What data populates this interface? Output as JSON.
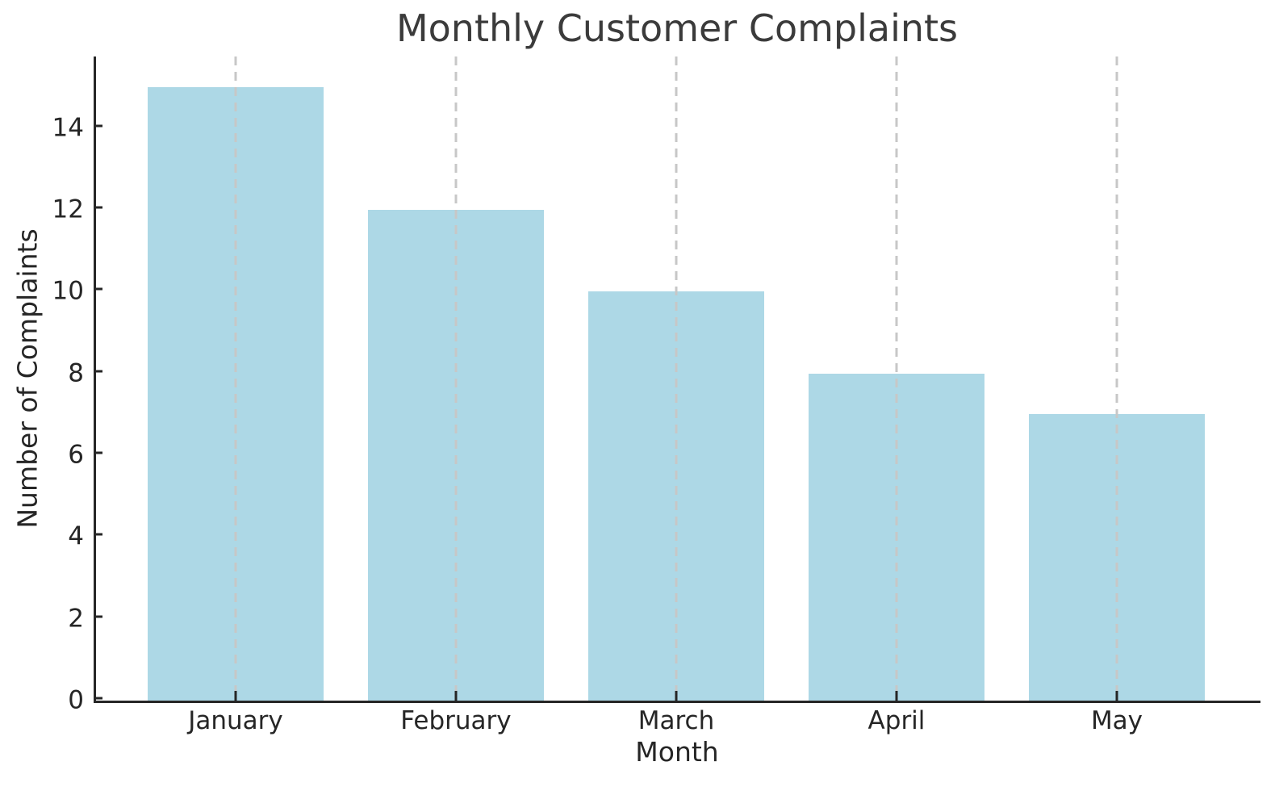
{
  "chart_data": {
    "type": "bar",
    "title": "Monthly Customer Complaints",
    "xlabel": "Month",
    "ylabel": "Number of Complaints",
    "categories": [
      "January",
      "February",
      "March",
      "April",
      "May"
    ],
    "values": [
      15,
      12,
      10,
      8,
      7
    ],
    "yticks": [
      0,
      2,
      4,
      6,
      8,
      10,
      12,
      14
    ],
    "ylim": [
      0,
      15.75
    ],
    "grid": "vertical dashed gridlines at each category, drawn over bars",
    "legend": "none",
    "colors": {
      "bar_fill": "#ADD8E6",
      "gridline": "#c7c7c7",
      "spine": "#262626",
      "tick_text": "#262626",
      "title_text": "#3b3b3b",
      "background": "#ffffff"
    }
  }
}
